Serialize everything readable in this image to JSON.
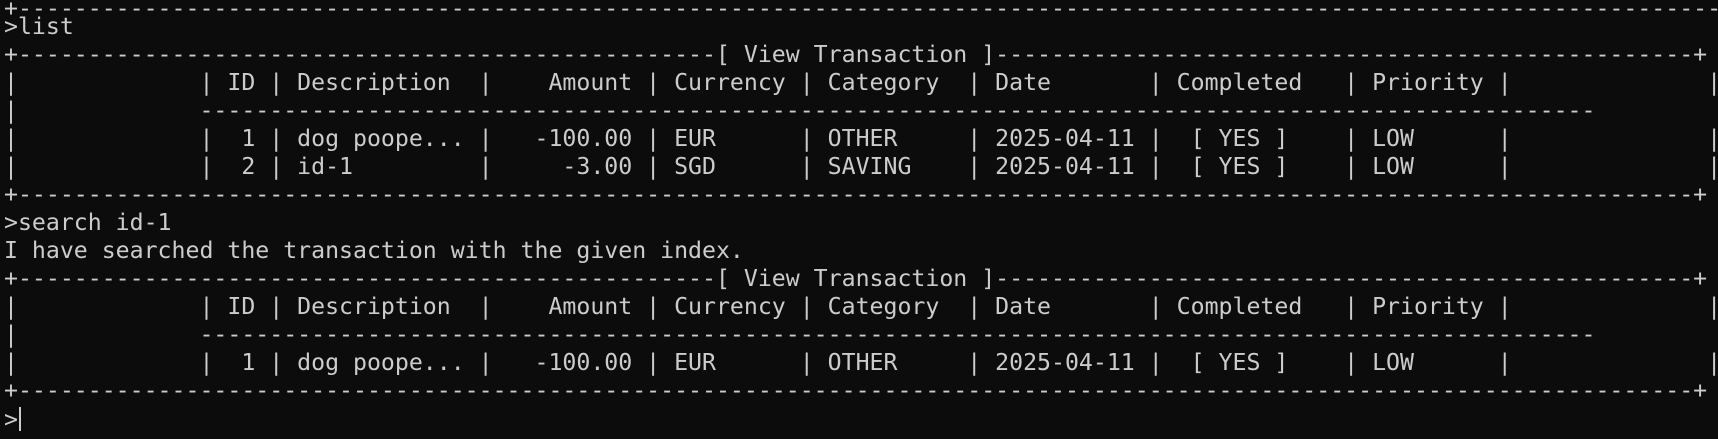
{
  "lines": [
    "+------------------------------------------------------------------------------------------------------------------------------------------------------------------------------------------+",
    ">list",
    "+--------------------------------------------------[ View Transaction ]--------------------------------------------------+",
    "|             | ID | Description  |    Amount | Currency | Category  | Date       | Completed   | Priority |              |",
    "|             ----------------------------------------------------------------------------------------------------              |",
    "|             |  1 | dog poope... |   -100.00 | EUR      | OTHER     | 2025-04-11 |  [ YES ]    | LOW      |              |",
    "|             |  2 | id-1         |     -3.00 | SGD      | SAVING    | 2025-04-11 |  [ YES ]    | LOW      |              |",
    "+------------------------------------------------------------------------------------------------------------------------+",
    ">search id-1",
    "I have searched the transaction with the given index.",
    "+--------------------------------------------------[ View Transaction ]--------------------------------------------------+",
    "|             | ID | Description  |    Amount | Currency | Category  | Date       | Completed   | Priority |              |",
    "|             ----------------------------------------------------------------------------------------------------              |",
    "|             |  1 | dog poope... |   -100.00 | EUR      | OTHER     | 2025-04-11 |  [ YES ]    | LOW      |              |",
    "+------------------------------------------------------------------------------------------------------------------------+"
  ],
  "prompt": ">"
}
